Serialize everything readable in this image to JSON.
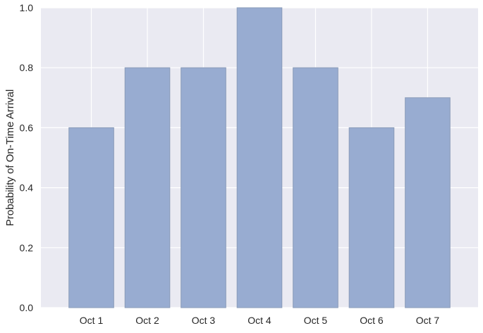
{
  "chart_data": {
    "type": "bar",
    "title": "",
    "xlabel": "",
    "ylabel": "Probability of On-Time Arrival",
    "categories": [
      "Oct 1",
      "Oct 2",
      "Oct 3",
      "Oct 4",
      "Oct 5",
      "Oct 6",
      "Oct 7"
    ],
    "values": [
      0.6,
      0.8,
      0.8,
      1.0,
      0.8,
      0.6,
      0.7
    ],
    "ylim": [
      0,
      1.0
    ],
    "yticks": [
      "0.0",
      "0.2",
      "0.4",
      "0.6",
      "0.8",
      "1.0"
    ],
    "grid": true,
    "style": {
      "background": "#eaeaf2",
      "grid_color": "#ffffff",
      "bar_fill": "#98acd1",
      "bar_edge": "#8a9bb8"
    }
  }
}
